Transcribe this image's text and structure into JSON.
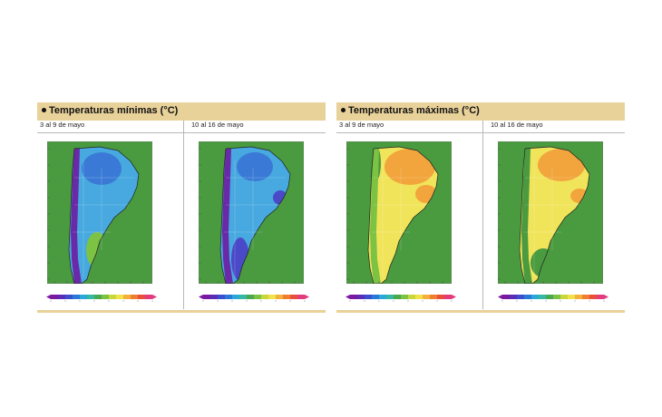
{
  "panels": [
    {
      "id": "min",
      "title": "Temperaturas mínimas (°C)",
      "maps": [
        {
          "label": "3 al 9 de mayo",
          "variant": "min1"
        },
        {
          "label": "10 al 16 de mayo",
          "variant": "min2"
        }
      ],
      "colorbar": [
        "#7a1aa0",
        "#5a2db8",
        "#3a4fcf",
        "#2a78d8",
        "#2aa8d8",
        "#35b9a3",
        "#4aa84e",
        "#7cc243",
        "#c8d83a",
        "#f1e14a",
        "#f3b13a",
        "#ef7f2f",
        "#e94f3b",
        "#e23c7d"
      ]
    },
    {
      "id": "max",
      "title": "Temperaturas máximas (°C)",
      "maps": [
        {
          "label": "3 al 9 de mayo",
          "variant": "max1"
        },
        {
          "label": "10 al 16 de mayo",
          "variant": "max2"
        }
      ],
      "colorbar": [
        "#7a1aa0",
        "#5a2db8",
        "#3a4fcf",
        "#2a78d8",
        "#2aa8d8",
        "#35b9a3",
        "#4aa84e",
        "#7cc243",
        "#c8d83a",
        "#f1e14a",
        "#f3b13a",
        "#ef7f2f",
        "#e94f3b",
        "#e23c7d"
      ]
    }
  ],
  "palette": {
    "header_bg": "#e9d29a",
    "ocean_green": "#4a9a3f",
    "deep_blue": "#4a49c8",
    "purple": "#6a2aa8",
    "mid_blue": "#3a7ad6",
    "light_blue": "#47a9e0",
    "yellow": "#f0e45a",
    "orange": "#f2a53c",
    "light_green": "#7cc243"
  }
}
